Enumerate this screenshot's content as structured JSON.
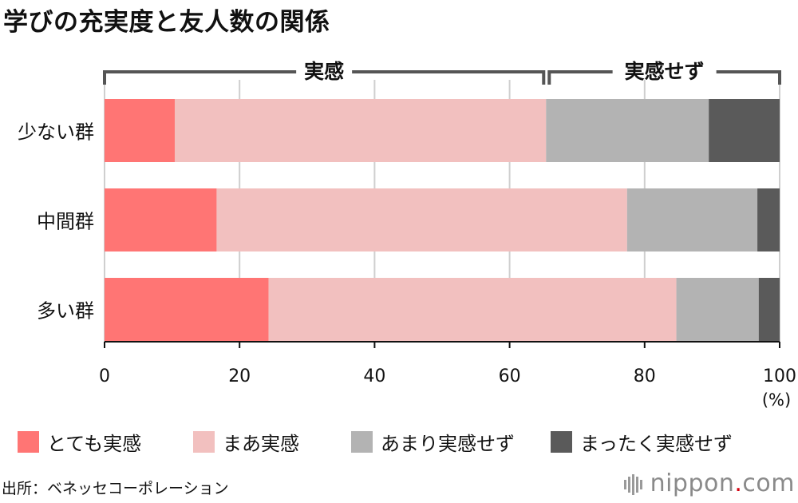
{
  "chart_data": {
    "type": "bar",
    "orientation": "horizontal",
    "stacked": true,
    "title": "学びの充実度と友人数の関係",
    "categories": [
      "少ない群",
      "中間群",
      "多い群"
    ],
    "series": [
      {
        "name": "とても実感",
        "color": "#ff7574",
        "values": [
          10.4,
          16.6,
          24.3
        ]
      },
      {
        "name": "まあ実感",
        "color": "#f2c0bf",
        "values": [
          55.0,
          60.8,
          60.4
        ]
      },
      {
        "name": "あまり実感せず",
        "color": "#b3b3b3",
        "values": [
          24.1,
          19.3,
          12.2
        ]
      },
      {
        "name": "まったく実感せず",
        "color": "#5a5a5a",
        "values": [
          10.5,
          3.3,
          3.1
        ]
      }
    ],
    "xlim": [
      0,
      100
    ],
    "xticks": [
      "0",
      "20",
      "40",
      "60",
      "80",
      "100"
    ],
    "unit": "(%)",
    "grid": true,
    "legend_position": "bottom",
    "brackets": [
      {
        "label": "実感",
        "from": 0,
        "to": 65.4
      },
      {
        "label": "実感せず",
        "to": 100,
        "from": 65.4
      }
    ]
  },
  "source": "出所：ベネッセコーポレーション",
  "brand": {
    "name": "nippon",
    "suffix": "com",
    "sep": "."
  }
}
